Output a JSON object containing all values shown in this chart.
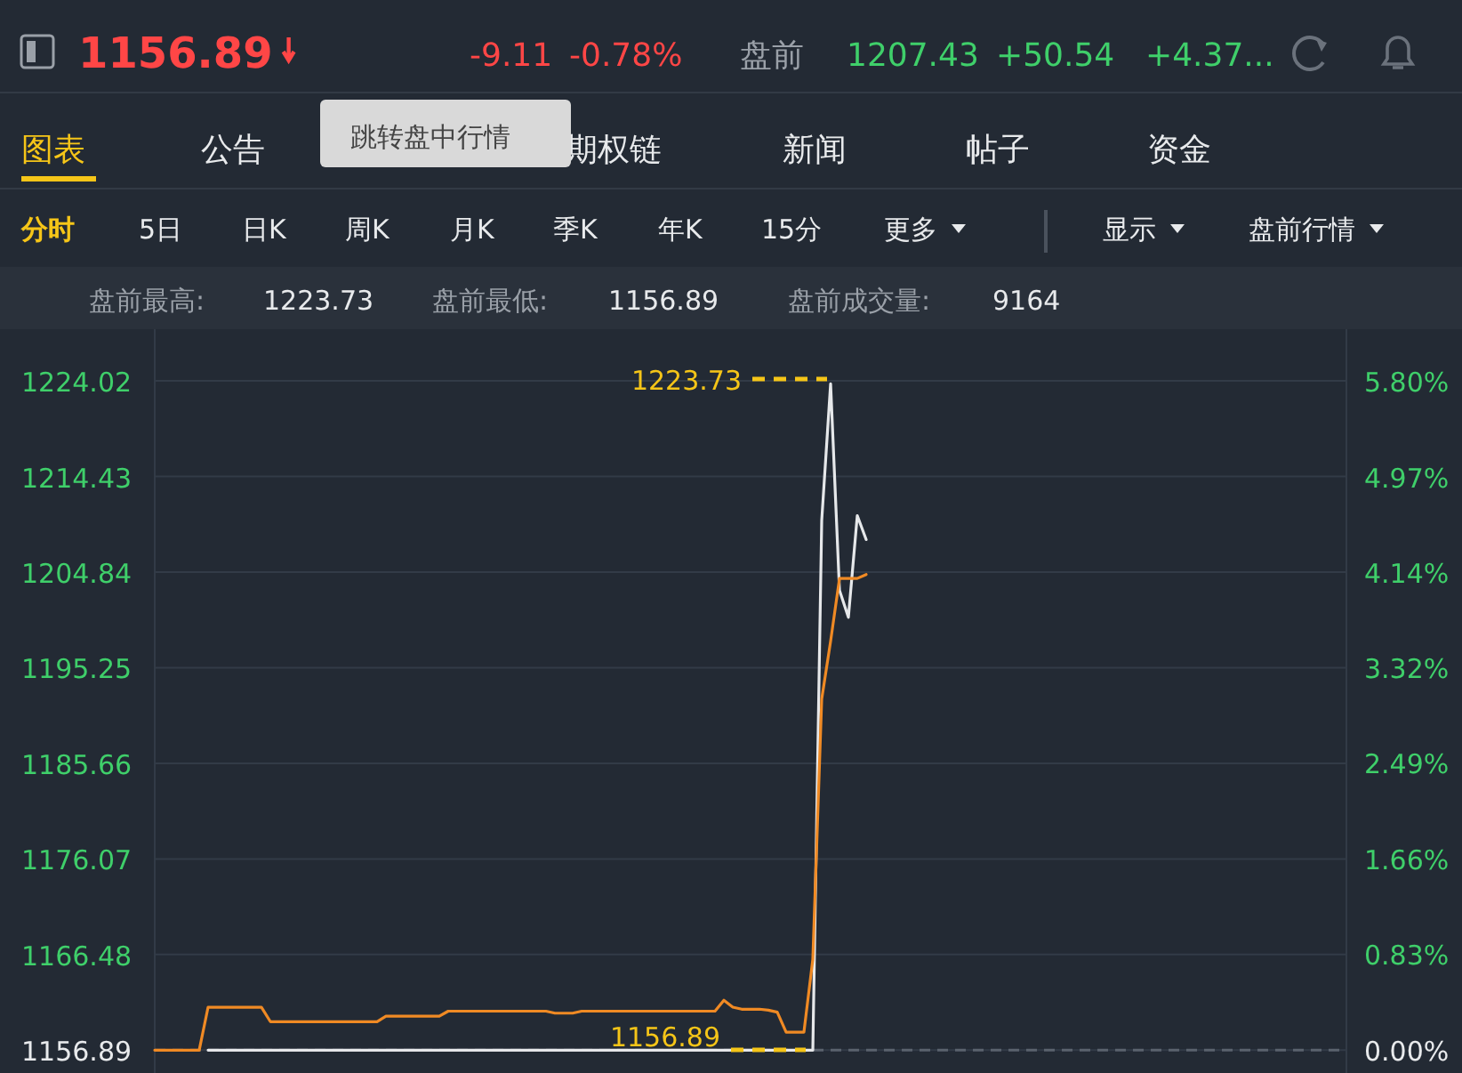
{
  "chart_data": [
    {
      "type": "other",
      "annotations": [
        "1156.89",
        "-9.11",
        "-0.78%",
        "盘前",
        "1207.43",
        "+50.54",
        "+4.37...",
        "图表",
        "公告",
        "期权链",
        "新闻",
        "帖子",
        "资金",
        "分时",
        "5日",
        "日K",
        "周K",
        "月K",
        "季K",
        "年K",
        "15分",
        "更多",
        "显示",
        "盘前行情",
        "盘前最高:",
        "1223.73",
        "盘前最低:",
        "1156.89",
        "盘前成交量:",
        "9164",
        "跳转盘中行情"
      ]
    },
    {
      "type": "line",
      "categories": [
        null,
        null,
        null,
        null,
        null,
        null,
        null,
        null,
        null,
        null,
        null,
        null,
        null,
        null,
        null,
        null,
        null,
        null,
        null,
        null,
        null,
        null,
        null,
        null,
        null,
        null,
        null,
        null,
        null,
        null,
        null,
        null,
        null,
        null,
        null,
        null,
        null,
        null,
        null,
        null,
        null,
        null,
        null,
        null,
        null,
        null,
        null,
        null,
        null,
        null,
        null,
        null,
        null,
        null,
        null,
        null,
        null,
        null,
        null,
        null,
        null,
        null,
        null,
        null,
        null,
        null,
        null,
        null,
        null,
        null,
        null,
        null,
        null,
        null,
        null,
        null,
        null,
        null,
        null,
        null,
        null,
        null,
        null,
        null,
        null,
        null,
        null,
        null,
        null,
        null,
        null,
        null,
        null,
        null,
        null,
        null,
        null,
        null,
        null,
        null,
        null,
        null,
        null,
        null,
        null,
        null,
        null,
        null,
        null,
        null,
        null,
        null,
        null,
        null,
        null,
        null,
        null,
        null,
        null,
        null,
        null,
        null,
        null,
        null,
        null,
        null,
        null,
        null,
        null,
        null,
        null,
        null,
        null,
        null,
        null
      ],
      "series": [
        {
          "color": "#e6e8ea",
          "values": [
            null,
            null,
            null,
            null,
            null,
            null,
            1156.89,
            1156.89,
            1156.89,
            1156.89,
            1156.89,
            1156.89,
            1156.89,
            1156.89,
            1156.89,
            1156.89,
            1156.89,
            1156.89,
            1156.89,
            1156.89,
            1156.89,
            1156.89,
            1156.89,
            1156.89,
            1156.89,
            1156.89,
            1156.89,
            1156.89,
            1156.89,
            1156.89,
            1156.89,
            1156.89,
            1156.89,
            1156.89,
            1156.89,
            1156.89,
            1156.89,
            1156.89,
            1156.89,
            1156.89,
            1156.89,
            1156.89,
            1156.89,
            1156.89,
            1156.89,
            1156.89,
            1156.89,
            1156.89,
            1156.89,
            1156.89,
            1156.89,
            1156.89,
            1156.89,
            1156.89,
            1156.89,
            1156.89,
            1156.89,
            1156.89,
            1156.89,
            1156.89,
            1156.89,
            1156.89,
            1156.89,
            1156.89,
            1156.89,
            1156.89,
            1156.89,
            1156.89,
            1156.89,
            1156.89,
            1156.89,
            1156.89,
            1156.89,
            1156.89,
            1156.89,
            1210,
            1223.73,
            1203,
            1200.3,
            1210.5,
            1208.1,
            null,
            null,
            null,
            null,
            null,
            null,
            null,
            null,
            null,
            null,
            null,
            null,
            null,
            null,
            null,
            null,
            null,
            null,
            null,
            null,
            null,
            null,
            null,
            null,
            null,
            null,
            null,
            null,
            null,
            null,
            null,
            null,
            null,
            null,
            null,
            null,
            null,
            null,
            null,
            null,
            null,
            null,
            null,
            null,
            null,
            null,
            null,
            null,
            null,
            null,
            null,
            null,
            null,
            null
          ]
        },
        {
          "color": "#f08a24",
          "values": [
            1156.89,
            1156.89,
            1156.89,
            1156.89,
            1156.89,
            1156.89,
            1161.2,
            1161.2,
            1161.2,
            1161.2,
            1161.2,
            1161.2,
            1161.2,
            1159.75,
            1159.75,
            1159.75,
            1159.75,
            1159.75,
            1159.75,
            1159.75,
            1159.75,
            1159.75,
            1159.75,
            1159.75,
            1159.75,
            1159.75,
            1160.3,
            1160.3,
            1160.3,
            1160.3,
            1160.3,
            1160.3,
            1160.3,
            1160.8,
            1160.8,
            1160.8,
            1160.8,
            1160.8,
            1160.8,
            1160.8,
            1160.8,
            1160.8,
            1160.8,
            1160.8,
            1160.8,
            1160.6,
            1160.6,
            1160.6,
            1160.8,
            1160.8,
            1160.8,
            1160.8,
            1160.8,
            1160.8,
            1160.8,
            1160.8,
            1160.8,
            1160.8,
            1160.8,
            1160.8,
            1160.8,
            1160.8,
            1160.8,
            1160.8,
            1161.9,
            1161.2,
            1161,
            1161,
            1161,
            1160.9,
            1160.7,
            1158.7,
            1158.7,
            1158.7,
            1166,
            1192.1,
            1197.9,
            1204.2,
            1204.2,
            1204.2,
            1204.6,
            null,
            null,
            null,
            null,
            null,
            null,
            null,
            null,
            null,
            null,
            null,
            null,
            null,
            null,
            null,
            null,
            null,
            null,
            null,
            null,
            null,
            null,
            null,
            null,
            null,
            null,
            null,
            null,
            null,
            null,
            null,
            null,
            null,
            null,
            null,
            null,
            null,
            null,
            null,
            null,
            null,
            null,
            null,
            null,
            null,
            null,
            null,
            null,
            null,
            null,
            null,
            null,
            null,
            null
          ]
        }
      ],
      "ylim": [
        1154.6,
        1229.2
      ],
      "yticks": [
        1156.89,
        1166.48,
        1176.07,
        1185.66,
        1195.25,
        1204.84,
        1214.43,
        1224.02
      ],
      "y2lim": [
        -0.2,
        6.25
      ],
      "y2ticks": [
        {
          "value": 0,
          "label": "0.00%"
        },
        {
          "value": 0.83,
          "label": "0.83%"
        },
        {
          "value": 1.66,
          "label": "1.66%"
        },
        {
          "value": 2.49,
          "label": "2.49%"
        },
        {
          "value": 3.32,
          "label": "3.32%"
        },
        {
          "value": 4.14,
          "label": "4.14%"
        },
        {
          "value": 4.97,
          "label": "4.97%"
        },
        {
          "value": 5.8,
          "label": "5.80%"
        }
      ],
      "grid": "y",
      "ref_lines": [
        {
          "axis": "y",
          "value": 1156.89,
          "color": "#5a626d",
          "line_style": "dashed"
        }
      ],
      "annotations": [
        "1223.73",
        "1156.89"
      ]
    }
  ]
}
